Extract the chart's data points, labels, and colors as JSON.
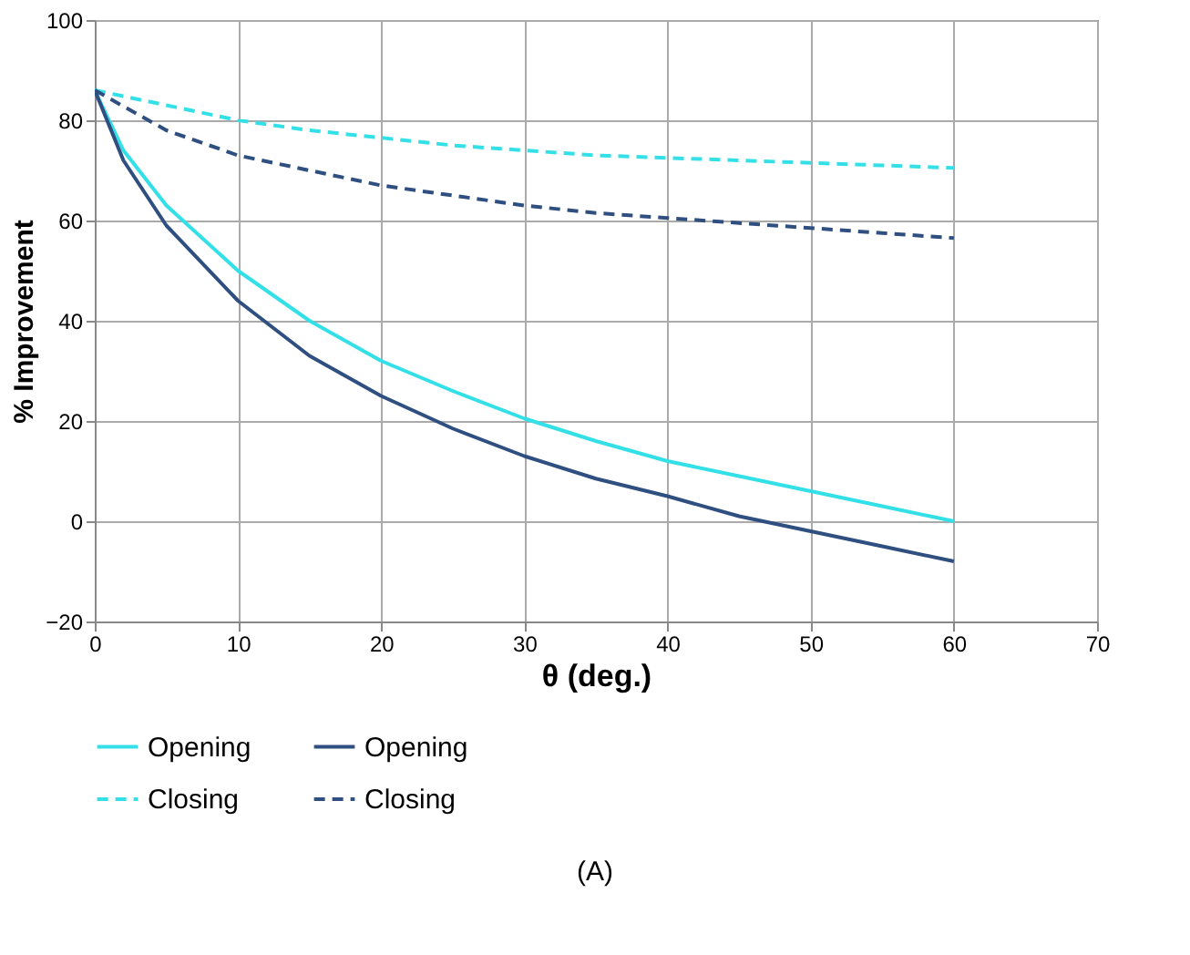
{
  "chart_data": {
    "type": "line",
    "xlabel": "θ (deg.)",
    "ylabel": "% Improvement",
    "xlim": [
      0,
      70
    ],
    "xticks": [
      0,
      10,
      20,
      30,
      40,
      50,
      60,
      70
    ],
    "ylim": [
      -20,
      100
    ],
    "yticks": [
      -20,
      0,
      20,
      40,
      60,
      80,
      100
    ],
    "grid": true,
    "legend": "bottom",
    "annotations": [
      "(A)"
    ],
    "series": [
      {
        "name": "Opening",
        "color": "#33e0e8",
        "line_style": "solid",
        "x": [
          0,
          2,
          5,
          10,
          15,
          20,
          25,
          30,
          35,
          40,
          45,
          50,
          55,
          60
        ],
        "values": [
          86,
          74,
          63,
          50,
          40,
          32,
          26,
          20.5,
          16,
          12,
          9,
          6,
          3,
          0
        ]
      },
      {
        "name": "Opening",
        "color": "#2f4f80",
        "line_style": "solid",
        "x": [
          0,
          2,
          5,
          10,
          15,
          20,
          25,
          30,
          35,
          40,
          45,
          50,
          55,
          60
        ],
        "values": [
          86,
          72,
          59,
          44,
          33,
          25,
          18.5,
          13,
          8.5,
          5,
          1,
          -2,
          -5,
          -8
        ]
      },
      {
        "name": "Closing",
        "color": "#33e0e8",
        "line_style": "dashed",
        "x": [
          0,
          5,
          10,
          15,
          20,
          25,
          30,
          35,
          40,
          45,
          50,
          55,
          60
        ],
        "values": [
          86,
          83,
          80,
          78,
          76.5,
          75,
          74,
          73,
          72.5,
          72,
          71.5,
          71,
          70.5
        ]
      },
      {
        "name": "Closing",
        "color": "#2f4f80",
        "line_style": "dashed",
        "x": [
          0,
          5,
          10,
          15,
          20,
          25,
          30,
          35,
          40,
          45,
          50,
          55,
          60
        ],
        "values": [
          86,
          78,
          73,
          70,
          67,
          65,
          63,
          61.5,
          60.5,
          59.5,
          58.5,
          57.5,
          56.5
        ]
      }
    ]
  }
}
